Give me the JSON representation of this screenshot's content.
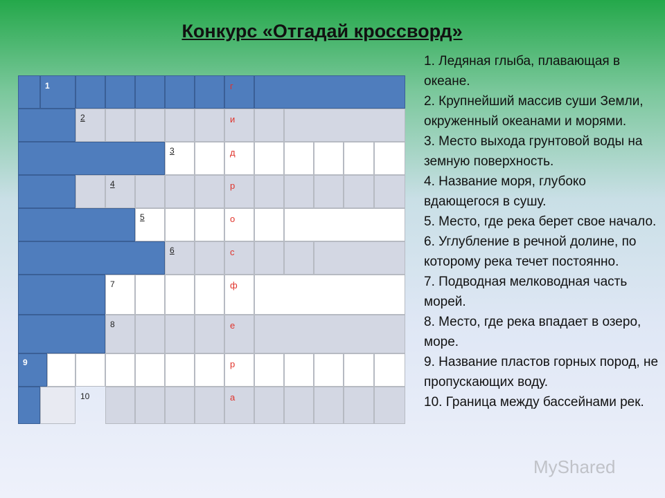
{
  "title": "Конкурс «Отгадай кроссворд»",
  "crossword": {
    "numbers": [
      "1",
      "2",
      "3",
      "4",
      "5",
      "6",
      "7",
      "8",
      "9",
      "10"
    ],
    "keyword_letters": [
      "г",
      "и",
      "д",
      "р",
      "о",
      "с",
      "ф",
      "е",
      "р",
      "а"
    ]
  },
  "clues": [
    "1. Ледяная глыба, плавающая в океане.",
    "2. Крупнейший массив суши Земли, окруженный океанами и морями.",
    "3. Место выхода грунтовой воды на земную поверхность.",
    "4. Название моря, глубоко вдающегося в сушу.",
    "5. Место, где река берет свое начало.",
    "6. Углубление в речной долине, по которому река течет постоянно.",
    "7. Подводная мелководная часть морей.",
    "8. Место, где река впадает в озеро, море.",
    "9. Название пластов горных пород, не пропускающих воду.",
    "10. Граница между бассейнами рек."
  ],
  "watermark": "MyShared"
}
